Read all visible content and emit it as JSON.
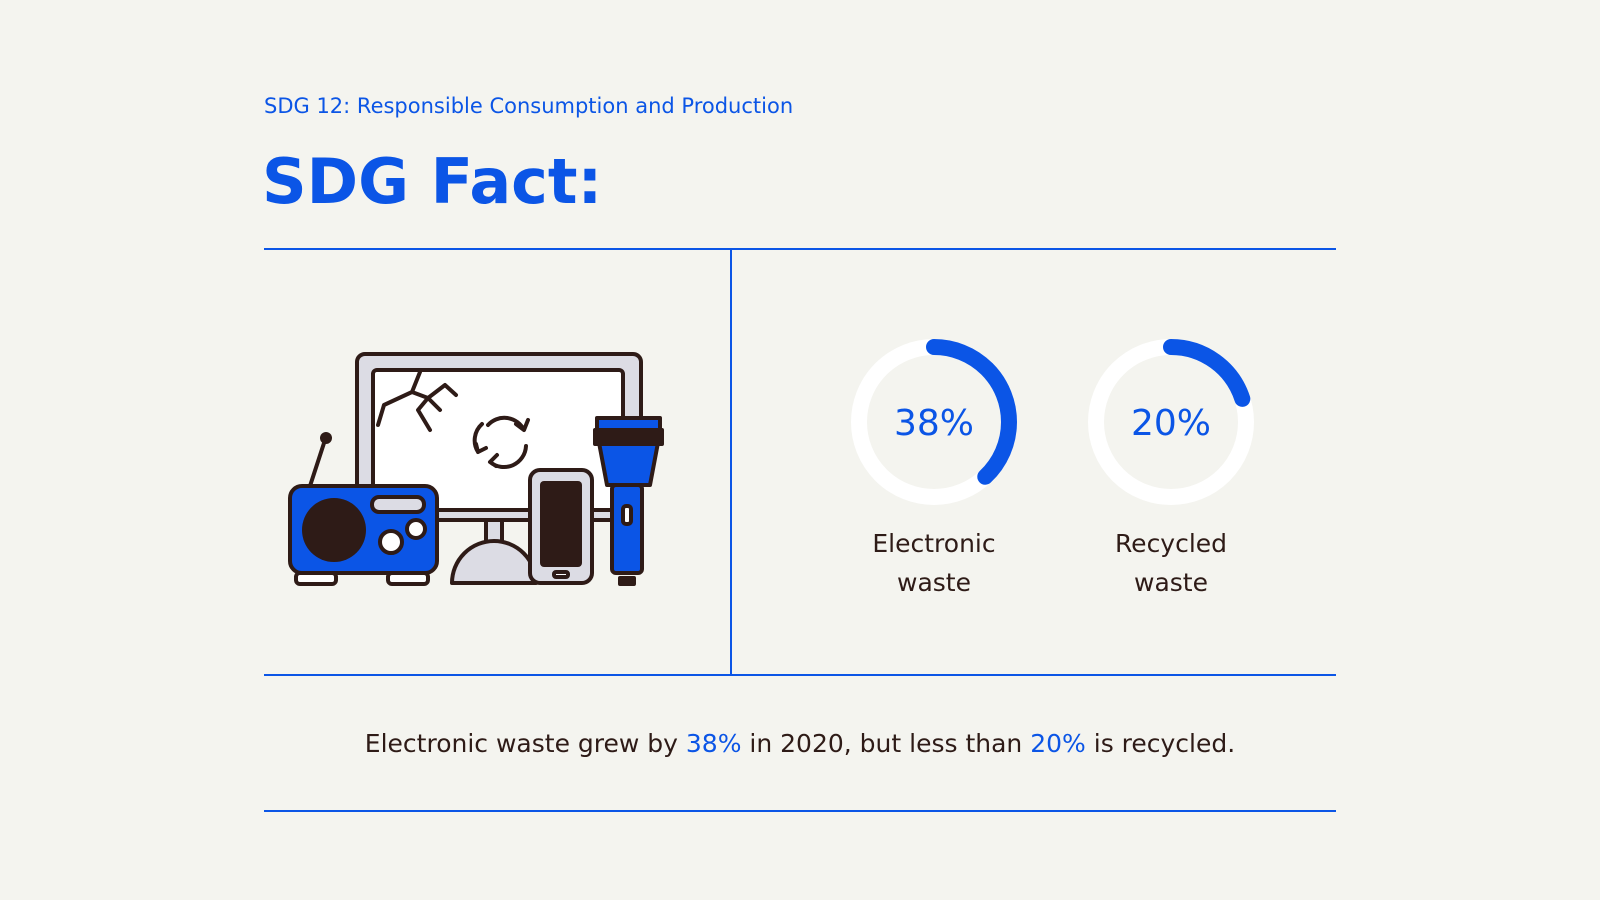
{
  "header": {
    "subtitle": "SDG 12: Responsible Consumption and Production",
    "title": "SDG Fact:"
  },
  "chart_data": [
    {
      "type": "donut",
      "label": "Electronic waste",
      "values": [
        38
      ],
      "value_labels": [
        "38%"
      ],
      "color": "#0b55e6",
      "track_color": "#ffffff"
    },
    {
      "type": "donut",
      "label": "Recycled waste",
      "values": [
        20
      ],
      "value_labels": [
        "20%"
      ],
      "color": "#0b55e6",
      "track_color": "#ffffff"
    }
  ],
  "statement": {
    "parts": [
      "Electronic waste grew by ",
      "38%",
      " in 2020, but less than ",
      "20%",
      " is recycled."
    ]
  }
}
